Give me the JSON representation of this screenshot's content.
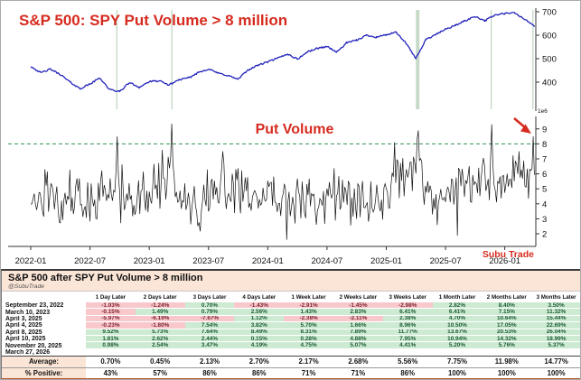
{
  "figure": {
    "title": "S&P 500: SPY Put Volume > 8 million",
    "put_volume_label": "Put Volume",
    "watermark": "Subu Trade",
    "scale_label": "1e6",
    "colors": {
      "title_red": "#d62b1f",
      "price_line": "#2222bb",
      "volume_line": "#111111",
      "threshold_green": "#4a9e6a",
      "event_line": "#c2d8c4",
      "arrow_red": "#d62b1f"
    }
  },
  "chart_data": [
    {
      "type": "line",
      "name": "sp500-price-panel",
      "title": "S&P 500: SPY Put Volume > 8 million",
      "ylabel": "",
      "y_ticks": [
        400,
        500,
        600,
        700
      ],
      "ylim": [
        355,
        710
      ],
      "x_ticks": [
        "2022-01",
        "2022-07",
        "2023-01",
        "2023-07",
        "2024-01",
        "2024-07",
        "2025-01",
        "2025-07",
        "2026-01"
      ],
      "event_dates": [
        "2022-09-23",
        "2023-03-10",
        "2025-04-03",
        "2025-04-04",
        "2025-04-08",
        "2025-04-10",
        "2025-11-20",
        "2026-03-27"
      ],
      "series": [
        {
          "name": "S&P 500 (SPY)",
          "color": "#2222bb",
          "points": [
            [
              "2022-01",
              468
            ],
            [
              "2022-02",
              440
            ],
            [
              "2022-03",
              455
            ],
            [
              "2022-04",
              432
            ],
            [
              "2022-05",
              400
            ],
            [
              "2022-06",
              372
            ],
            [
              "2022-07",
              392
            ],
            [
              "2022-08",
              418
            ],
            [
              "2022-09",
              368
            ],
            [
              "2022-10",
              360
            ],
            [
              "2022-11",
              398
            ],
            [
              "2022-12",
              378
            ],
            [
              "2023-01",
              402
            ],
            [
              "2023-02",
              405
            ],
            [
              "2023-03",
              388
            ],
            [
              "2023-04",
              410
            ],
            [
              "2023-05",
              418
            ],
            [
              "2023-06",
              442
            ],
            [
              "2023-07",
              456
            ],
            [
              "2023-08",
              438
            ],
            [
              "2023-09",
              428
            ],
            [
              "2023-10",
              412
            ],
            [
              "2023-11",
              452
            ],
            [
              "2023-12",
              472
            ],
            [
              "2024-01",
              486
            ],
            [
              "2024-02",
              502
            ],
            [
              "2024-03",
              520
            ],
            [
              "2024-04",
              498
            ],
            [
              "2024-05",
              528
            ],
            [
              "2024-06",
              544
            ],
            [
              "2024-07",
              552
            ],
            [
              "2024-08",
              528
            ],
            [
              "2024-09",
              568
            ],
            [
              "2024-10",
              578
            ],
            [
              "2024-11",
              600
            ],
            [
              "2024-12",
              592
            ],
            [
              "2025-01",
              602
            ],
            [
              "2025-02",
              612
            ],
            [
              "2025-03",
              566
            ],
            [
              "2025-04",
              500
            ],
            [
              "2025-05",
              582
            ],
            [
              "2025-06",
              602
            ],
            [
              "2025-07",
              626
            ],
            [
              "2025-08",
              642
            ],
            [
              "2025-09",
              662
            ],
            [
              "2025-10",
              680
            ],
            [
              "2025-11",
              662
            ],
            [
              "2025-12",
              686
            ],
            [
              "2026-01",
              692
            ],
            [
              "2026-02",
              695
            ],
            [
              "2026-03",
              668
            ],
            [
              "2026-04",
              640
            ]
          ]
        }
      ]
    },
    {
      "type": "line",
      "name": "spy-put-volume-panel",
      "label": "Put Volume",
      "unit": "1e6",
      "y_ticks": [
        2,
        3,
        4,
        5,
        6,
        7,
        8,
        9
      ],
      "ylim": [
        1.3,
        9.8
      ],
      "threshold": 8,
      "baseline": [
        [
          "2022-01",
          4.3
        ],
        [
          "2022-02",
          4.4
        ],
        [
          "2022-03",
          4.2
        ],
        [
          "2022-04",
          4.0
        ],
        [
          "2022-05",
          4.5
        ],
        [
          "2022-06",
          4.2
        ],
        [
          "2022-07",
          4.0
        ],
        [
          "2022-08",
          4.3
        ],
        [
          "2022-09",
          5.0
        ],
        [
          "2022-10",
          4.6
        ],
        [
          "2022-11",
          4.4
        ],
        [
          "2022-12",
          4.6
        ],
        [
          "2023-01",
          4.8
        ],
        [
          "2023-02",
          5.2
        ],
        [
          "2023-03",
          5.4
        ],
        [
          "2023-04",
          4.2
        ],
        [
          "2023-05",
          4.4
        ],
        [
          "2023-06",
          4.0
        ],
        [
          "2023-07",
          4.2
        ],
        [
          "2023-08",
          4.8
        ],
        [
          "2023-09",
          5.0
        ],
        [
          "2023-10",
          5.2
        ],
        [
          "2023-11",
          4.4
        ],
        [
          "2023-12",
          4.2
        ],
        [
          "2024-01",
          4.6
        ],
        [
          "2024-02",
          4.4
        ],
        [
          "2024-03",
          4.2
        ],
        [
          "2024-04",
          4.8
        ],
        [
          "2024-05",
          4.2
        ],
        [
          "2024-06",
          3.8
        ],
        [
          "2024-07",
          4.4
        ],
        [
          "2024-08",
          4.8
        ],
        [
          "2024-09",
          4.4
        ],
        [
          "2024-10",
          4.2
        ],
        [
          "2024-11",
          4.0
        ],
        [
          "2024-12",
          4.4
        ],
        [
          "2025-01",
          4.8
        ],
        [
          "2025-02",
          5.4
        ],
        [
          "2025-03",
          6.2
        ],
        [
          "2025-04",
          6.6
        ],
        [
          "2025-05",
          5.4
        ],
        [
          "2025-06",
          4.6
        ],
        [
          "2025-07",
          4.4
        ],
        [
          "2025-08",
          4.6
        ],
        [
          "2025-09",
          5.0
        ],
        [
          "2025-10",
          5.2
        ],
        [
          "2025-11",
          5.6
        ],
        [
          "2025-12",
          5.2
        ],
        [
          "2026-01",
          5.4
        ],
        [
          "2026-02",
          6.0
        ],
        [
          "2026-03",
          6.8
        ]
      ],
      "spikes": [
        [
          "2022-09-23",
          8.5
        ],
        [
          "2023-02-10",
          7.6
        ],
        [
          "2023-03-10",
          9.35
        ],
        [
          "2023-08-15",
          7.5
        ],
        [
          "2025-01-27",
          8.1
        ],
        [
          "2025-04-04",
          8.3
        ],
        [
          "2025-04-07",
          9.6
        ],
        [
          "2025-04-10",
          8.9
        ],
        [
          "2025-11-20",
          9.3
        ],
        [
          "2026-03-27",
          8.5
        ]
      ],
      "annotation": {
        "type": "arrow",
        "target_date": "2026-03-27",
        "target_value": 8.5
      }
    }
  ],
  "table": {
    "title": "S&P 500 after SPY Put Volume > 8 million",
    "handle": "@SubuTrade",
    "columns": [
      "1 Day Later",
      "2 Days Later",
      "3 Days Later",
      "4 Days Later",
      "1 Week Later",
      "2 Weeks Later",
      "3 Weeks Later",
      "1 Month Later",
      "2 Months Later",
      "3 Months Later"
    ],
    "rows": [
      {
        "date": "September 23, 2022",
        "values": [
          "-1.03%",
          "-1.24%",
          "0.70%",
          "-1.43%",
          "-2.91%",
          "-1.45%",
          "-2.98%",
          "2.82%",
          "8.40%",
          "3.50%"
        ]
      },
      {
        "date": "March 10, 2023",
        "values": [
          "-0.15%",
          "1.49%",
          "0.79%",
          "2.56%",
          "1.43%",
          "2.83%",
          "6.41%",
          "6.41%",
          "7.15%",
          "11.32%"
        ]
      },
      {
        "date": "April 3, 2025",
        "values": [
          "-5.97%",
          "-6.19%",
          "-7.67%",
          "1.12%",
          "-2.38%",
          "-2.11%",
          "2.38%",
          "4.70%",
          "10.64%",
          "15.44%"
        ]
      },
      {
        "date": "April 4, 2025",
        "values": [
          "-0.23%",
          "-1.80%",
          "7.54%",
          "3.82%",
          "5.70%",
          "1.66%",
          "8.96%",
          "10.50%",
          "17.05%",
          "22.69%"
        ]
      },
      {
        "date": "April 8, 2025",
        "values": [
          "9.52%",
          "5.73%",
          "7.64%",
          "8.49%",
          "8.31%",
          "7.89%",
          "11.77%",
          "13.67%",
          "20.53%",
          "26.04%"
        ]
      },
      {
        "date": "April 10, 2025",
        "values": [
          "1.81%",
          "2.62%",
          "2.44%",
          "0.15%",
          "0.28%",
          "4.88%",
          "7.95%",
          "10.94%",
          "14.32%",
          "18.99%"
        ]
      },
      {
        "date": "November 20, 2025",
        "values": [
          "0.98%",
          "2.54%",
          "3.47%",
          "4.19%",
          "4.75%",
          "5.07%",
          "4.41%",
          "5.20%",
          "5.76%",
          "5.37%"
        ]
      },
      {
        "date": "March 27, 2026",
        "values": [
          "",
          "",
          "",
          "",
          "",
          "",
          "",
          "",
          "",
          ""
        ]
      }
    ],
    "average": {
      "label": "Average:",
      "values": [
        "0.70%",
        "0.45%",
        "2.13%",
        "2.70%",
        "2.17%",
        "2.68%",
        "5.56%",
        "7.75%",
        "11.98%",
        "14.77%"
      ]
    },
    "percent_positive": {
      "label": "% Positive:",
      "values": [
        "43%",
        "57%",
        "86%",
        "86%",
        "71%",
        "71%",
        "86%",
        "100%",
        "100%",
        "100%"
      ]
    }
  }
}
